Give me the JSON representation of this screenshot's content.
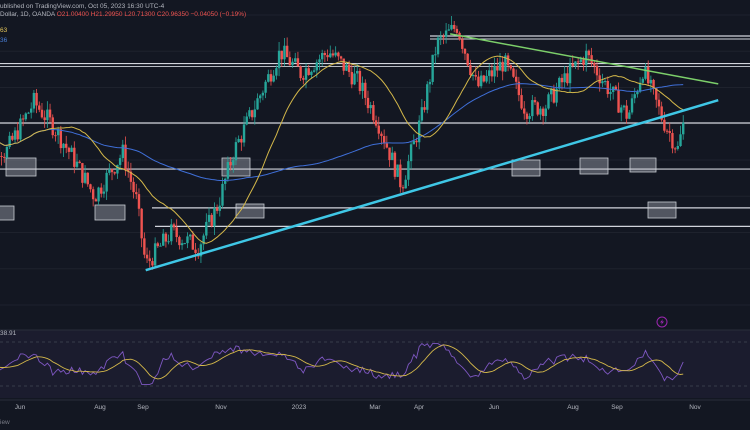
{
  "header": {
    "source": "ublished on TradingView.com, Oct 05, 2023 16:30 UTC-4",
    "symbol": "Dollar, 1D, OANDA",
    "open": "O21.00400",
    "high": "H21.29950",
    "low": "L20.71300",
    "close": "C20.96350",
    "change": "−0.04050 (−0.19%)",
    "ma1_value": "63",
    "ma2_value": "36"
  },
  "rsi_panel": {
    "value": "38.91"
  },
  "footer": {
    "text": "iew"
  },
  "colors": {
    "background": "#131722",
    "candle_up": "#26a69a",
    "candle_down": "#ef5350",
    "ma_fast": "#d4b84a",
    "ma_slow": "#3f6fd8",
    "uptrend_line": "#3fc7e6",
    "downtrend_line": "#7ccf6a",
    "horizontal_levels": "#d1d4dc",
    "rsi_line": "#7e57c2",
    "rsi_signal": "#d4b84a"
  },
  "chart_data": {
    "type": "candlestick",
    "x_ticks": [
      "Jun",
      "Aug",
      "Sep",
      "Nov",
      "2023",
      "Mar",
      "Apr",
      "Jun",
      "Aug",
      "Sep",
      "Nov"
    ],
    "y_range": [
      16.0,
      24.0
    ],
    "horizontal_levels": [
      23.42,
      22.66,
      21.02,
      19.75,
      18.68,
      18.17
    ],
    "trendlines": [
      {
        "name": "uptrend",
        "points": [
          [
            "2022-09-01",
            16.96
          ],
          [
            "2023-10-31",
            21.65
          ]
        ]
      },
      {
        "name": "downtrend",
        "points": [
          [
            "2023-04-15",
            23.48
          ],
          [
            "2023-10-31",
            22.1
          ]
        ]
      }
    ],
    "highlight_zones": [
      "Jun 2022",
      "Aug 2022",
      "Nov 2022",
      "Jun 2023",
      "Aug 2023",
      "Sep 2023",
      "Oct 2023"
    ],
    "rsi": {
      "value": 38.91,
      "range": [
        0,
        100
      ]
    }
  }
}
